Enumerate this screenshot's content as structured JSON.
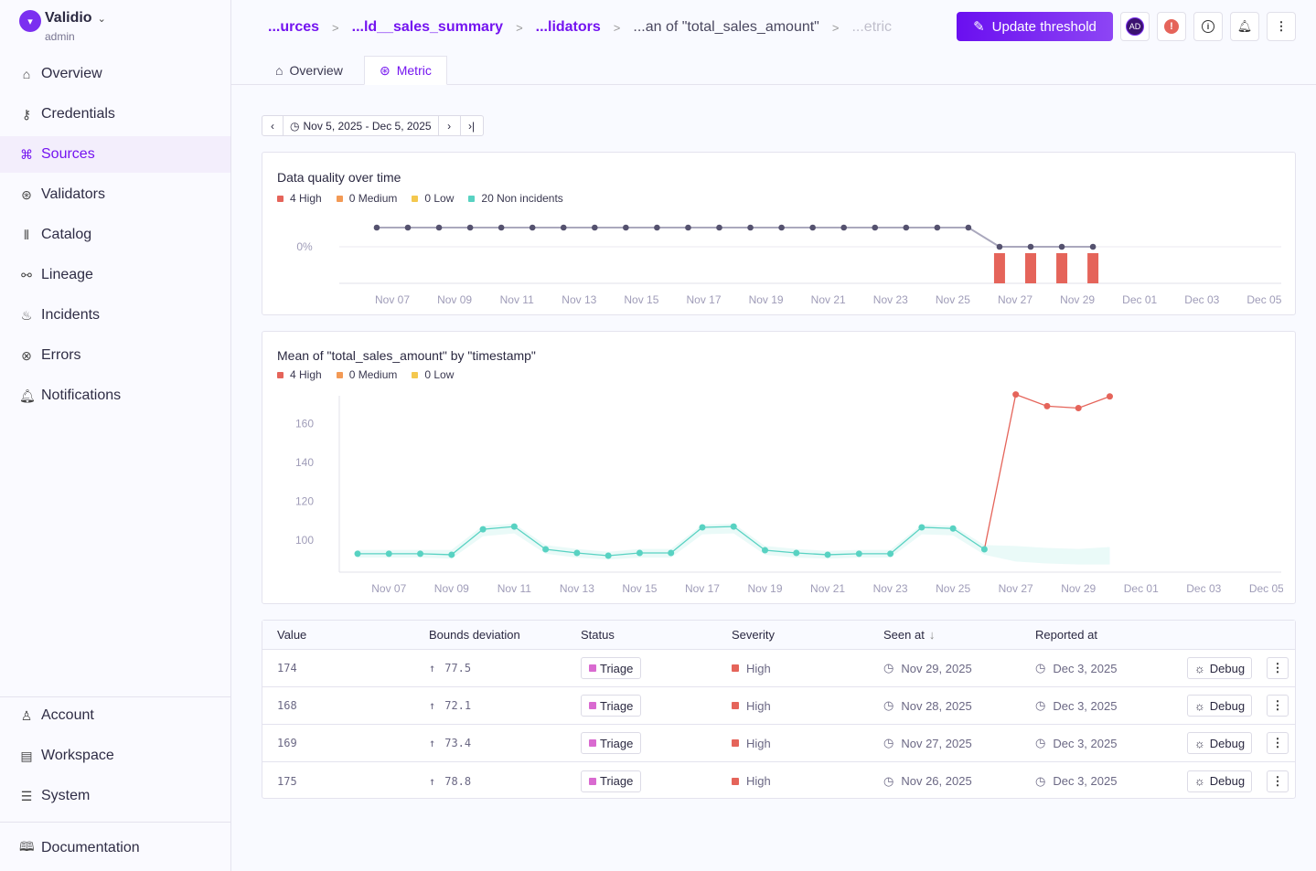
{
  "app": {
    "name": "Validio",
    "role": "admin"
  },
  "sidebar": {
    "items": [
      {
        "label": "Overview",
        "icon": "home-icon"
      },
      {
        "label": "Credentials",
        "icon": "key-icon"
      },
      {
        "label": "Sources",
        "icon": "sources-icon",
        "active": true
      },
      {
        "label": "Validators",
        "icon": "validators-icon"
      },
      {
        "label": "Catalog",
        "icon": "catalog-icon"
      },
      {
        "label": "Lineage",
        "icon": "lineage-icon"
      },
      {
        "label": "Incidents",
        "icon": "flame-icon"
      },
      {
        "label": "Errors",
        "icon": "error-circle-icon"
      },
      {
        "label": "Notifications",
        "icon": "bell-icon"
      }
    ],
    "bottom": [
      {
        "label": "Account",
        "icon": "user-icon"
      },
      {
        "label": "Workspace",
        "icon": "workspace-icon"
      },
      {
        "label": "System",
        "icon": "server-icon"
      }
    ],
    "docs": {
      "label": "Documentation",
      "icon": "book-icon"
    }
  },
  "breadcrumbs": [
    "...urces",
    "...ld__sales_summary",
    "...lidators",
    "...an of \"total_sales_amount\"",
    "...etric"
  ],
  "header": {
    "update_threshold": "Update threshold",
    "avatar": "AD"
  },
  "tabs": [
    {
      "label": "Overview"
    },
    {
      "label": "Metric",
      "active": true
    }
  ],
  "date_range": "Nov 5, 2025 - Dec 5, 2025",
  "colors": {
    "accent": "#7414f0",
    "high": "#e5645a",
    "medium": "#f39a55",
    "low": "#f4c84e",
    "ok": "#58d2c2",
    "triage": "#d96ad0"
  },
  "chart_data": [
    {
      "type": "line",
      "title": "Data quality over time",
      "legend": [
        "4 High",
        "0 Medium",
        "0 Low",
        "20 Non incidents"
      ],
      "y_tick_labels": [
        "0%"
      ],
      "x_tick_labels": [
        "Nov 07",
        "Nov 09",
        "Nov 11",
        "Nov 13",
        "Nov 15",
        "Nov 17",
        "Nov 19",
        "Nov 21",
        "Nov 23",
        "Nov 25",
        "Nov 27",
        "Nov 29",
        "Dec 01",
        "Dec 03",
        "Dec 05"
      ],
      "x": [
        "Nov 06",
        "Nov 07",
        "Nov 08",
        "Nov 09",
        "Nov 10",
        "Nov 11",
        "Nov 12",
        "Nov 13",
        "Nov 14",
        "Nov 15",
        "Nov 16",
        "Nov 17",
        "Nov 18",
        "Nov 19",
        "Nov 20",
        "Nov 21",
        "Nov 22",
        "Nov 23",
        "Nov 24",
        "Nov 25",
        "Nov 26",
        "Nov 27",
        "Nov 28",
        "Nov 29"
      ],
      "quality": [
        1,
        1,
        1,
        1,
        1,
        1,
        1,
        1,
        1,
        1,
        1,
        1,
        1,
        1,
        1,
        1,
        1,
        1,
        1,
        1,
        0,
        0,
        0,
        0
      ],
      "high_incidents": [
        0,
        0,
        0,
        0,
        0,
        0,
        0,
        0,
        0,
        0,
        0,
        0,
        0,
        0,
        0,
        0,
        0,
        0,
        0,
        0,
        1,
        1,
        1,
        1
      ]
    },
    {
      "type": "line",
      "title": "Mean of \"total_sales_amount\" by \"timestamp\"",
      "legend": [
        "4 High",
        "0 Medium",
        "0 Low"
      ],
      "y_tick_labels": [
        "160",
        "140",
        "120",
        "100"
      ],
      "y_ticks": [
        160,
        140,
        120,
        100
      ],
      "x_tick_labels": [
        "Nov 07",
        "Nov 09",
        "Nov 11",
        "Nov 13",
        "Nov 15",
        "Nov 17",
        "Nov 19",
        "Nov 21",
        "Nov 23",
        "Nov 25",
        "Nov 27",
        "Nov 29",
        "Dec 01",
        "Dec 03",
        "Dec 05"
      ],
      "values": [
        93,
        93,
        93,
        92.5,
        105.6,
        107,
        95.3,
        93.4,
        92,
        93.4,
        93.4,
        106.6,
        107,
        94.8,
        93.4,
        92.5,
        93,
        93,
        106.6,
        106,
        95.3,
        175,
        169,
        168,
        174
      ],
      "incident_from_index": 21,
      "upper": [
        95,
        95,
        95,
        95,
        107.5,
        108.5,
        97.5,
        95.5,
        94,
        95.5,
        95.5,
        108,
        108.5,
        97,
        95.5,
        94.5,
        95,
        95,
        108,
        107.5,
        97.5,
        97,
        96,
        95.5,
        96.5
      ],
      "lower": [
        91,
        91,
        91,
        90.5,
        102,
        103.5,
        93,
        91,
        90,
        91,
        91,
        103,
        103.5,
        92.5,
        91,
        90.5,
        91,
        91,
        103,
        102.5,
        92.5,
        89,
        88,
        87.5,
        87.5
      ]
    }
  ],
  "table": {
    "headers": [
      "Value",
      "Bounds deviation",
      "Status",
      "Severity",
      "Seen at",
      "Reported at"
    ],
    "rows": [
      {
        "value": "174",
        "deviation": "77.5",
        "status": "Triage",
        "severity": "High",
        "seen": "Nov 29, 2025",
        "reported": "Dec 3, 2025",
        "action": "Debug"
      },
      {
        "value": "168",
        "deviation": "72.1",
        "status": "Triage",
        "severity": "High",
        "seen": "Nov 28, 2025",
        "reported": "Dec 3, 2025",
        "action": "Debug"
      },
      {
        "value": "169",
        "deviation": "73.4",
        "status": "Triage",
        "severity": "High",
        "seen": "Nov 27, 2025",
        "reported": "Dec 3, 2025",
        "action": "Debug"
      },
      {
        "value": "175",
        "deviation": "78.8",
        "status": "Triage",
        "severity": "High",
        "seen": "Nov 26, 2025",
        "reported": "Dec 3, 2025",
        "action": "Debug"
      }
    ]
  }
}
